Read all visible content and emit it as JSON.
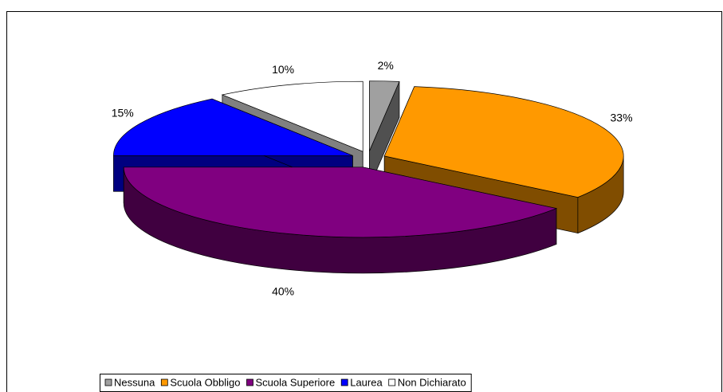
{
  "chart_data": {
    "type": "pie3d",
    "categories": [
      "Nessuna",
      "Scuola Obbligo",
      "Scuola Superiore",
      "Laurea",
      "Non Dichiarato"
    ],
    "values": [
      2,
      33,
      40,
      15,
      10
    ],
    "value_labels": [
      "2%",
      "33%",
      "40%",
      "15%",
      "10%"
    ],
    "colors": [
      "#a0a0a0",
      "#ff9900",
      "#800080",
      "#0000ff",
      "#ffffff"
    ],
    "legend": "bottom"
  }
}
